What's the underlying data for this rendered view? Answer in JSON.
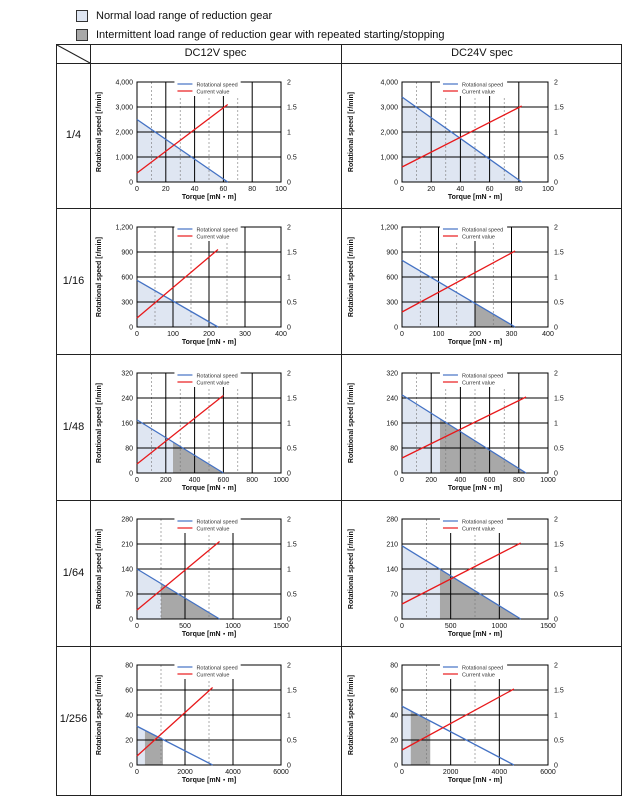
{
  "legend": [
    {
      "label": "Normal load range of reduction gear",
      "color": "#dfe6f2"
    },
    {
      "label": "Intermittent load range of reduction gear with repeated starting/stopping",
      "color": "#a8a8a8"
    }
  ],
  "columns": [
    "DC12V spec",
    "DC24V spec"
  ],
  "rows": [
    "1/4",
    "1/16",
    "1/48",
    "1/64",
    "1/256"
  ],
  "colors": {
    "speed": "#4472c4",
    "current": "#e8191b",
    "normal_fill": "#dfe6f2",
    "intermittent_fill": "#a8a8a8"
  },
  "chart_data": [
    {
      "type": "line",
      "ratio": "1/4",
      "spec": "DC12V spec",
      "xlabel": "Torque [mN・m]",
      "ylabel": "Rotational speed [r/min]",
      "y2label": "",
      "xlim": [
        0,
        100
      ],
      "ylim": [
        0,
        4000
      ],
      "y2lim": [
        0,
        2
      ],
      "xticks": [
        0,
        20,
        40,
        60,
        80,
        100
      ],
      "yticks": [
        "0",
        "1,000",
        "2,000",
        "3,000",
        "4,000"
      ],
      "y2ticks": [
        "0",
        "0.5",
        "1",
        "1.5",
        "2"
      ],
      "series": [
        {
          "name": "Rotational speed",
          "x": [
            0,
            63
          ],
          "y": [
            2500,
            0
          ]
        },
        {
          "name": "Current value",
          "x": [
            0,
            63
          ],
          "y": [
            0.18,
            1.55
          ]
        }
      ],
      "normal_range": [
        0,
        63
      ],
      "intermittent_range": null
    },
    {
      "type": "line",
      "ratio": "1/4",
      "spec": "DC24V spec",
      "xlabel": "Torque [mN・m]",
      "ylabel": "Rotational speed [r/min]",
      "y2label": "",
      "xlim": [
        0,
        100
      ],
      "ylim": [
        0,
        4000
      ],
      "y2lim": [
        0,
        2
      ],
      "xticks": [
        0,
        20,
        40,
        60,
        80,
        100
      ],
      "yticks": [
        "0",
        "1,000",
        "2,000",
        "3,000",
        "4,000"
      ],
      "y2ticks": [
        "0",
        "0.5",
        "1",
        "1.5",
        "2"
      ],
      "series": [
        {
          "name": "Rotational speed",
          "x": [
            0,
            82
          ],
          "y": [
            3400,
            0
          ]
        },
        {
          "name": "Current value",
          "x": [
            0,
            82
          ],
          "y": [
            0.3,
            1.52
          ]
        }
      ],
      "normal_range": [
        0,
        82
      ],
      "intermittent_range": null
    },
    {
      "type": "line",
      "ratio": "1/16",
      "spec": "DC12V spec",
      "xlabel": "Torque [mN・m]",
      "ylabel": "Rotational speed [r/min]",
      "y2label": "",
      "xlim": [
        0,
        400
      ],
      "ylim": [
        0,
        1200
      ],
      "y2lim": [
        0,
        2
      ],
      "xticks": [
        0,
        100,
        200,
        300,
        400
      ],
      "yticks": [
        "0",
        "300",
        "600",
        "900",
        "1,200"
      ],
      "y2ticks": [
        "0",
        "0.5",
        "1",
        "1.5",
        "2"
      ],
      "series": [
        {
          "name": "Rotational speed",
          "x": [
            0,
            225
          ],
          "y": [
            560,
            0
          ]
        },
        {
          "name": "Current value",
          "x": [
            0,
            225
          ],
          "y": [
            0.18,
            1.55
          ]
        }
      ],
      "normal_range": [
        0,
        225
      ],
      "intermittent_range": null
    },
    {
      "type": "line",
      "ratio": "1/16",
      "spec": "DC24V spec",
      "xlabel": "Torque [mN・m]",
      "ylabel": "Rotational speed [r/min]",
      "y2label": "",
      "xlim": [
        0,
        400
      ],
      "ylim": [
        0,
        1200
      ],
      "y2lim": [
        0,
        2
      ],
      "xticks": [
        0,
        100,
        200,
        300,
        400
      ],
      "yticks": [
        "0",
        "300",
        "600",
        "900",
        "1,200"
      ],
      "y2ticks": [
        "0",
        "0.5",
        "1",
        "1.5",
        "2"
      ],
      "series": [
        {
          "name": "Rotational speed",
          "x": [
            0,
            310
          ],
          "y": [
            800,
            0
          ]
        },
        {
          "name": "Current value",
          "x": [
            0,
            310
          ],
          "y": [
            0.3,
            1.52
          ]
        }
      ],
      "normal_range": [
        0,
        200
      ],
      "intermittent_range": [
        200,
        310
      ]
    },
    {
      "type": "line",
      "ratio": "1/48",
      "spec": "DC12V spec",
      "xlabel": "Torque [mN・m]",
      "ylabel": "Rotational speed [r/min]",
      "y2label": "",
      "xlim": [
        0,
        1000
      ],
      "ylim": [
        0,
        320
      ],
      "y2lim": [
        0,
        2
      ],
      "xticks": [
        0,
        200,
        400,
        600,
        800,
        1000
      ],
      "yticks": [
        "0",
        "80",
        "160",
        "240",
        "320"
      ],
      "y2ticks": [
        "0",
        "0.5",
        "1",
        "1.5",
        "2"
      ],
      "series": [
        {
          "name": "Rotational speed",
          "x": [
            0,
            600
          ],
          "y": [
            170,
            0
          ]
        },
        {
          "name": "Current value",
          "x": [
            0,
            600
          ],
          "y": [
            0.18,
            1.55
          ]
        }
      ],
      "normal_range": [
        0,
        250
      ],
      "intermittent_range": [
        250,
        600
      ]
    },
    {
      "type": "line",
      "ratio": "1/48",
      "spec": "DC24V spec",
      "xlabel": "Torque [mN・m]",
      "ylabel": "Rotational speed [r/min]",
      "y2label": "",
      "xlim": [
        0,
        1000
      ],
      "ylim": [
        0,
        320
      ],
      "y2lim": [
        0,
        2
      ],
      "xticks": [
        0,
        200,
        400,
        600,
        800,
        1000
      ],
      "yticks": [
        "0",
        "80",
        "160",
        "240",
        "320"
      ],
      "y2ticks": [
        "0",
        "0.5",
        "1",
        "1.5",
        "2"
      ],
      "series": [
        {
          "name": "Rotational speed",
          "x": [
            0,
            850
          ],
          "y": [
            250,
            0
          ]
        },
        {
          "name": "Current value",
          "x": [
            0,
            850
          ],
          "y": [
            0.3,
            1.52
          ]
        }
      ],
      "normal_range": [
        0,
        260
      ],
      "intermittent_range": [
        260,
        850
      ]
    },
    {
      "type": "line",
      "ratio": "1/64",
      "spec": "DC12V spec",
      "xlabel": "Torque [mN・m]",
      "ylabel": "Rotational speed [r/min]",
      "y2label": "",
      "xlim": [
        0,
        1500
      ],
      "ylim": [
        0,
        280
      ],
      "y2lim": [
        0,
        2
      ],
      "xticks": [
        0,
        500,
        1000,
        1500
      ],
      "yticks": [
        "0",
        "70",
        "140",
        "210",
        "280"
      ],
      "y2ticks": [
        "0",
        "0.5",
        "1",
        "1.5",
        "2"
      ],
      "series": [
        {
          "name": "Rotational speed",
          "x": [
            0,
            860
          ],
          "y": [
            140,
            0
          ]
        },
        {
          "name": "Current value",
          "x": [
            0,
            860
          ],
          "y": [
            0.18,
            1.55
          ]
        }
      ],
      "normal_range": [
        0,
        250
      ],
      "intermittent_range": [
        250,
        860
      ]
    },
    {
      "type": "line",
      "ratio": "1/64",
      "spec": "DC24V spec",
      "xlabel": "Torque [mN・m]",
      "ylabel": "Rotational speed [r/min]",
      "y2label": "",
      "xlim": [
        0,
        1500
      ],
      "ylim": [
        0,
        280
      ],
      "y2lim": [
        0,
        2
      ],
      "xticks": [
        0,
        500,
        1000,
        1500
      ],
      "yticks": [
        "0",
        "70",
        "140",
        "210",
        "280"
      ],
      "y2ticks": [
        "0",
        "0.5",
        "1",
        "1.5",
        "2"
      ],
      "series": [
        {
          "name": "Rotational speed",
          "x": [
            0,
            1220
          ],
          "y": [
            205,
            0
          ]
        },
        {
          "name": "Current value",
          "x": [
            0,
            1220
          ],
          "y": [
            0.3,
            1.52
          ]
        }
      ],
      "normal_range": [
        0,
        390
      ],
      "intermittent_range": [
        390,
        1220
      ]
    },
    {
      "type": "line",
      "ratio": "1/256",
      "spec": "DC12V spec",
      "xlabel": "Torque [mN・m]",
      "ylabel": "Rotational speed [r/min]",
      "y2label": "",
      "xlim": [
        0,
        6000
      ],
      "ylim": [
        0,
        80
      ],
      "y2lim": [
        0,
        2
      ],
      "xticks": [
        0,
        2000,
        4000,
        6000
      ],
      "yticks": [
        "0",
        "20",
        "40",
        "60",
        "80"
      ],
      "y2ticks": [
        "0",
        "0.5",
        "1",
        "1.5",
        "2"
      ],
      "series": [
        {
          "name": "Rotational speed",
          "x": [
            0,
            3150
          ],
          "y": [
            31,
            0
          ]
        },
        {
          "name": "Current value",
          "x": [
            0,
            3150
          ],
          "y": [
            0.18,
            1.55
          ]
        }
      ],
      "normal_range": [
        0,
        330
      ],
      "intermittent_range": [
        330,
        1080
      ]
    },
    {
      "type": "line",
      "ratio": "1/256",
      "spec": "DC24V spec",
      "xlabel": "Torque [mN・m]",
      "ylabel": "Rotational speed [r/min]",
      "y2label": "",
      "xlim": [
        0,
        6000
      ],
      "ylim": [
        0,
        80
      ],
      "y2lim": [
        0,
        2
      ],
      "xticks": [
        0,
        2000,
        4000,
        6000
      ],
      "yticks": [
        "0",
        "20",
        "40",
        "60",
        "80"
      ],
      "y2ticks": [
        "0",
        "0.5",
        "1",
        "1.5",
        "2"
      ],
      "series": [
        {
          "name": "Rotational speed",
          "x": [
            0,
            4600
          ],
          "y": [
            47,
            0
          ]
        },
        {
          "name": "Current value",
          "x": [
            0,
            4600
          ],
          "y": [
            0.3,
            1.52
          ]
        }
      ],
      "normal_range": [
        0,
        360
      ],
      "intermittent_range": [
        360,
        1160
      ]
    }
  ]
}
